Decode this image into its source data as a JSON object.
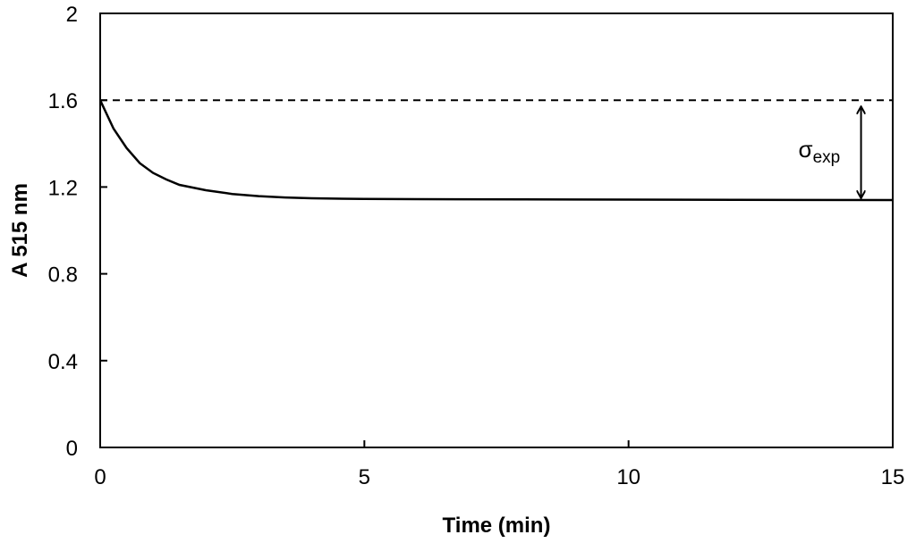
{
  "chart_data": {
    "type": "line",
    "title": "",
    "xlabel": "Time (min)",
    "ylabel": "A 515 nm",
    "xlim": [
      0,
      15
    ],
    "ylim": [
      0,
      2
    ],
    "xticks": [
      0,
      5,
      10,
      15
    ],
    "yticks": [
      0,
      0.4,
      0.8,
      1.2,
      1.6,
      2
    ],
    "xtick_labels": [
      "0",
      "5",
      "10",
      "15"
    ],
    "ytick_labels": [
      "0",
      "0.4",
      "0.8",
      "1.2",
      "1.6",
      "2"
    ],
    "grid": false,
    "series": [
      {
        "style": "solid",
        "x": [
          0,
          0.25,
          0.5,
          0.75,
          1,
          1.25,
          1.5,
          2,
          2.5,
          3,
          3.5,
          4,
          5,
          6,
          8,
          10,
          12,
          15
        ],
        "y": [
          1.6,
          1.47,
          1.38,
          1.31,
          1.265,
          1.235,
          1.21,
          1.185,
          1.168,
          1.158,
          1.152,
          1.148,
          1.145,
          1.144,
          1.143,
          1.142,
          1.141,
          1.14
        ]
      },
      {
        "style": "dashed",
        "x": [
          0,
          15
        ],
        "y": [
          1.6,
          1.6
        ]
      }
    ],
    "annotations": [
      {
        "type": "double-arrow",
        "x": 14.4,
        "y_from": 1.6,
        "y_to": 1.14,
        "label_main": "σ",
        "label_sub": "exp"
      }
    ]
  }
}
